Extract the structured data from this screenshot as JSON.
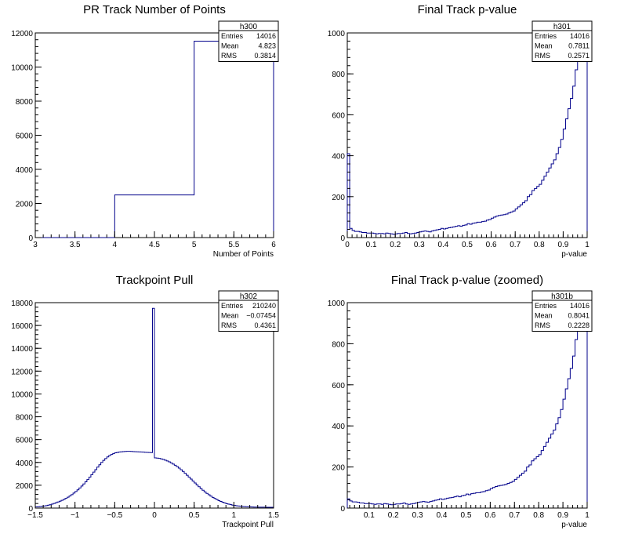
{
  "colors": {
    "line": "#00008b",
    "frame": "#000000",
    "background": "#ffffff"
  },
  "chart_data": [
    {
      "type": "histogram",
      "title": "PR Track Number of Points",
      "xlabel": "Number of Points",
      "ylabel": "",
      "xlim": [
        3,
        6
      ],
      "ylim": [
        0,
        12000
      ],
      "x_ticks": [
        "3",
        "3.5",
        "4",
        "4.5",
        "5",
        "5.5",
        "6"
      ],
      "y_ticks": [
        "0",
        "2000",
        "4000",
        "6000",
        "8000",
        "10000",
        "12000"
      ],
      "bins": 30,
      "values": [
        0,
        0,
        0,
        0,
        0,
        0,
        0,
        0,
        0,
        0,
        2500,
        2500,
        2500,
        2500,
        2500,
        2500,
        2500,
        2500,
        2500,
        2500,
        11516,
        11516,
        11516,
        11516,
        11516,
        11516,
        11516,
        11516,
        11516,
        11516
      ],
      "stats": {
        "name": "h300",
        "rows": [
          [
            "Entries",
            "14016"
          ],
          [
            "Mean",
            "4.823"
          ],
          [
            "RMS",
            "0.3814"
          ]
        ]
      }
    },
    {
      "type": "histogram",
      "title": "Final Track p-value",
      "xlabel": "p-value",
      "ylabel": "",
      "xlim": [
        0,
        1
      ],
      "ylim": [
        0,
        1000
      ],
      "x_ticks": [
        "0",
        "0.1",
        "0.2",
        "0.3",
        "0.4",
        "0.5",
        "0.6",
        "0.7",
        "0.8",
        "0.9",
        "1"
      ],
      "y_ticks": [
        "0",
        "200",
        "400",
        "600",
        "800",
        "1000"
      ],
      "bins": 100,
      "values": [
        410,
        45,
        35,
        30,
        30,
        28,
        25,
        25,
        22,
        22,
        22,
        20,
        18,
        20,
        20,
        18,
        22,
        20,
        18,
        16,
        18,
        20,
        20,
        22,
        25,
        20,
        18,
        20,
        22,
        25,
        28,
        30,
        32,
        30,
        28,
        32,
        35,
        38,
        40,
        45,
        42,
        45,
        48,
        50,
        52,
        55,
        58,
        55,
        60,
        62,
        68,
        65,
        70,
        72,
        75,
        75,
        78,
        80,
        85,
        88,
        95,
        100,
        105,
        108,
        110,
        112,
        115,
        120,
        125,
        130,
        140,
        150,
        160,
        170,
        180,
        200,
        210,
        230,
        240,
        250,
        260,
        280,
        300,
        320,
        340,
        360,
        380,
        410,
        440,
        480,
        530,
        580,
        630,
        680,
        740,
        820,
        880,
        900,
        920,
        940
      ],
      "stats": {
        "name": "h301",
        "rows": [
          [
            "Entries",
            "14016"
          ],
          [
            "Mean",
            "0.7811"
          ],
          [
            "RMS",
            "0.2571"
          ]
        ]
      }
    },
    {
      "type": "histogram",
      "title": "Trackpoint Pull",
      "xlabel": "Trackpoint Pull",
      "ylabel": "",
      "xlim": [
        -1.5,
        1.5
      ],
      "ylim": [
        0,
        18000
      ],
      "x_ticks": [
        "−1.5",
        "−1",
        "−0.5",
        "0",
        "0.5",
        "1",
        "1.5"
      ],
      "y_ticks": [
        "0",
        "2000",
        "4000",
        "6000",
        "8000",
        "10000",
        "12000",
        "14000",
        "16000",
        "18000"
      ],
      "bins": 120,
      "values": [
        100,
        110,
        130,
        150,
        180,
        210,
        250,
        290,
        340,
        400,
        460,
        530,
        600,
        680,
        760,
        850,
        950,
        1060,
        1180,
        1310,
        1450,
        1600,
        1760,
        1930,
        2110,
        2300,
        2500,
        2710,
        2930,
        3150,
        3370,
        3590,
        3800,
        4000,
        4180,
        4340,
        4480,
        4600,
        4700,
        4780,
        4840,
        4880,
        4910,
        4930,
        4950,
        4960,
        4970,
        4970,
        4960,
        4950,
        4940,
        4930,
        4920,
        4910,
        4900,
        4890,
        4880,
        4870,
        4860,
        17500,
        4400,
        4380,
        4350,
        4310,
        4260,
        4200,
        4130,
        4050,
        3960,
        3860,
        3750,
        3630,
        3500,
        3360,
        3210,
        3050,
        2880,
        2710,
        2540,
        2370,
        2200,
        2030,
        1870,
        1710,
        1560,
        1420,
        1290,
        1170,
        1050,
        940,
        840,
        750,
        660,
        580,
        510,
        450,
        390,
        340,
        300,
        260,
        230,
        200,
        180,
        160,
        140,
        130,
        120,
        110,
        100,
        95,
        90,
        85,
        80,
        78,
        76,
        74,
        72,
        70,
        68,
        66
      ],
      "stats": {
        "name": "h302",
        "rows": [
          [
            "Entries",
            "210240"
          ],
          [
            "Mean",
            "−0.07454"
          ],
          [
            "RMS",
            "0.4361"
          ]
        ]
      }
    },
    {
      "type": "histogram",
      "title": "Final Track p-value (zoomed)",
      "xlabel": "p-value",
      "ylabel": "",
      "xlim": [
        0.01,
        1
      ],
      "ylim": [
        0,
        1000
      ],
      "x_ticks": [
        "0.1",
        "0.2",
        "0.3",
        "0.4",
        "0.5",
        "0.6",
        "0.7",
        "0.8",
        "0.9",
        "1"
      ],
      "x_tick_values": [
        0.1,
        0.2,
        0.3,
        0.4,
        0.5,
        0.6,
        0.7,
        0.8,
        0.9,
        1.0
      ],
      "y_ticks": [
        "0",
        "200",
        "400",
        "600",
        "800",
        "1000"
      ],
      "bins": 99,
      "values": [
        45,
        35,
        30,
        30,
        28,
        25,
        25,
        22,
        22,
        22,
        20,
        18,
        20,
        20,
        18,
        22,
        20,
        18,
        16,
        18,
        20,
        20,
        22,
        25,
        20,
        18,
        20,
        22,
        25,
        28,
        30,
        32,
        30,
        28,
        32,
        35,
        38,
        40,
        45,
        42,
        45,
        48,
        50,
        52,
        55,
        58,
        55,
        60,
        62,
        68,
        65,
        70,
        72,
        75,
        75,
        78,
        80,
        85,
        88,
        95,
        100,
        105,
        108,
        110,
        112,
        115,
        120,
        125,
        130,
        140,
        150,
        160,
        170,
        180,
        200,
        210,
        230,
        240,
        250,
        260,
        280,
        300,
        320,
        340,
        360,
        380,
        410,
        440,
        480,
        530,
        580,
        630,
        680,
        740,
        820,
        880,
        900,
        920,
        940
      ],
      "stats": {
        "name": "h301b",
        "rows": [
          [
            "Entries",
            "14016"
          ],
          [
            "Mean",
            "0.8041"
          ],
          [
            "RMS",
            "0.2228"
          ]
        ]
      }
    }
  ]
}
